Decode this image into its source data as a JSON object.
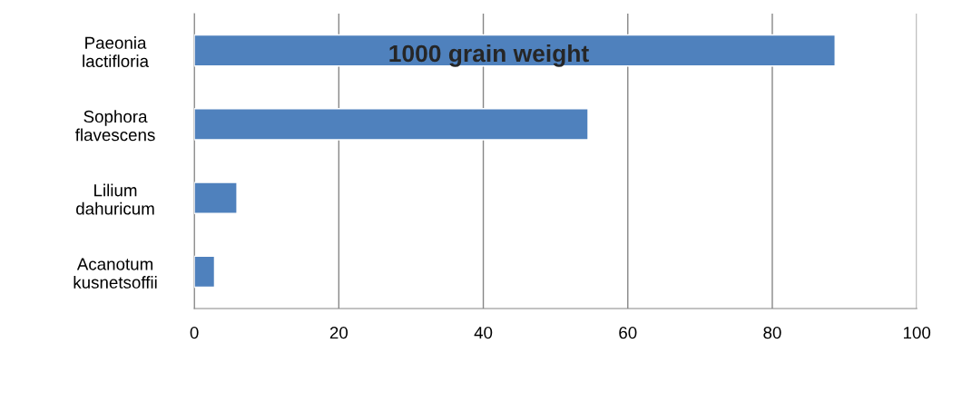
{
  "chart_data": {
    "type": "bar",
    "orientation": "horizontal",
    "title": "1000 grain weight",
    "categories": [
      "Paeonia\nlactifloria",
      "Sophora\nflavescens",
      "Lilium\ndahuricum",
      "Acanotum\nkusnetsoffii"
    ],
    "values": [
      88.7,
      54.5,
      5.9,
      2.8
    ],
    "color": "#4f81bd",
    "xlim": [
      0,
      100
    ],
    "xticks": [
      0,
      20,
      40,
      60,
      80,
      100
    ],
    "grid": "x",
    "legend": false
  }
}
